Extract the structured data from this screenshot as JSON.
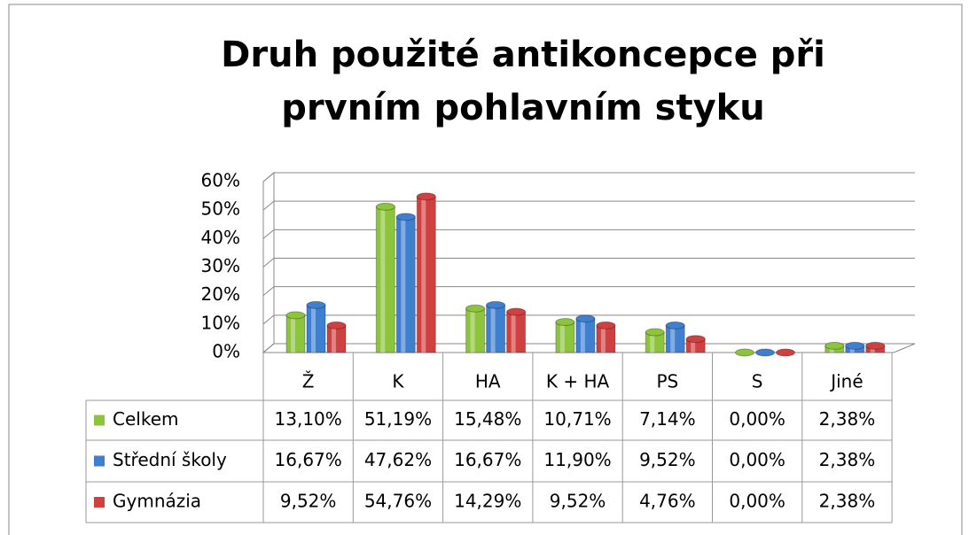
{
  "chart_data": {
    "type": "bar",
    "title": "Druh použité antikoncepce při prvním pohlavním styku",
    "categories": [
      "Ž",
      "K",
      "HA",
      "K + HA",
      "PS",
      "S",
      "Jiné"
    ],
    "series": [
      {
        "name": "Celkem",
        "color": "#8cc43c",
        "values": [
          13.1,
          51.19,
          15.48,
          10.71,
          7.14,
          0.0,
          2.38
        ],
        "value_labels": [
          "13,10%",
          "51,19%",
          "15,48%",
          "10,71%",
          "7,14%",
          "0,00%",
          "2,38%"
        ]
      },
      {
        "name": "Střední školy",
        "color": "#3f7fd0",
        "values": [
          16.67,
          47.62,
          16.67,
          11.9,
          9.52,
          0.0,
          2.38
        ],
        "value_labels": [
          "16,67%",
          "47,62%",
          "16,67%",
          "11,90%",
          "9,52%",
          "0,00%",
          "2,38%"
        ]
      },
      {
        "name": "Gymnázia",
        "color": "#d04040",
        "values": [
          9.52,
          54.76,
          14.29,
          9.52,
          4.76,
          0.0,
          2.38
        ],
        "value_labels": [
          "9,52%",
          "54,76%",
          "14,29%",
          "9,52%",
          "4,76%",
          "0,00%",
          "2,38%"
        ]
      }
    ],
    "ylim": [
      0,
      60
    ],
    "yticks": [
      {
        "value": 0,
        "label": "0%"
      },
      {
        "value": 10,
        "label": "10%"
      },
      {
        "value": 20,
        "label": "20%"
      },
      {
        "value": 30,
        "label": "30%"
      },
      {
        "value": 40,
        "label": "40%"
      },
      {
        "value": 50,
        "label": "50%"
      },
      {
        "value": 60,
        "label": "60%"
      }
    ],
    "grid": true
  }
}
